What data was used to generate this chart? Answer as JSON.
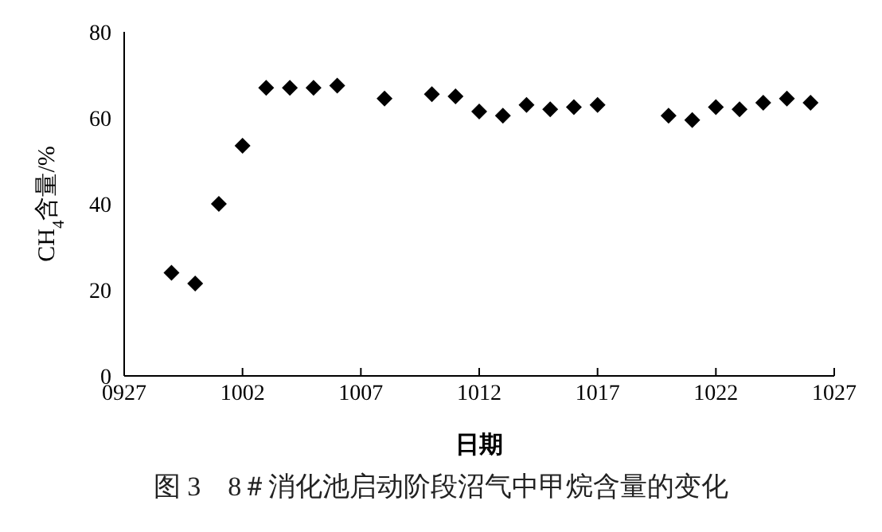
{
  "chart_data": {
    "type": "scatter",
    "xlabel": "日期",
    "ylabel": "CH$_{4}$含量/%",
    "annotations": [
      "图 3　8＃消化池启动阶段沼气中甲烷含量的变化"
    ],
    "x": [
      "--09-29",
      "--09-30",
      "--10-01",
      "--10-02",
      "--10-03",
      "--10-04",
      "--10-05",
      "--10-06",
      "--10-08",
      "--10-10",
      "--10-11",
      "--10-12",
      "--10-13",
      "--10-14",
      "--10-15",
      "--10-16",
      "--10-17",
      "--10-20",
      "--10-21",
      "--10-22",
      "--10-23",
      "--10-24",
      "--10-25",
      "--10-26"
    ],
    "series": [
      {
        "color": "#000000",
        "values": [
          24,
          21.5,
          40,
          53.5,
          67,
          67,
          67,
          67.5,
          64.5,
          65.5,
          65,
          61.5,
          60.5,
          63,
          62,
          62.5,
          63,
          60.5,
          59.5,
          62.5,
          62,
          63.5,
          64.5,
          63.5
        ]
      }
    ],
    "marker": "diamond",
    "grid": false,
    "legend": false,
    "xlim": [
      "--09-27",
      "--10-27"
    ],
    "xticks": [
      {
        "value": "--09-27",
        "label": "0927"
      },
      {
        "value": "--10-02",
        "label": "1002"
      },
      {
        "value": "--10-07",
        "label": "1007"
      },
      {
        "value": "--10-12",
        "label": "1012"
      },
      {
        "value": "--10-17",
        "label": "1017"
      },
      {
        "value": "--10-22",
        "label": "1022"
      },
      {
        "value": "--10-27",
        "label": "1027"
      }
    ],
    "ylim": [
      0,
      80
    ],
    "yticks": [
      0,
      20,
      40,
      60,
      80
    ]
  }
}
